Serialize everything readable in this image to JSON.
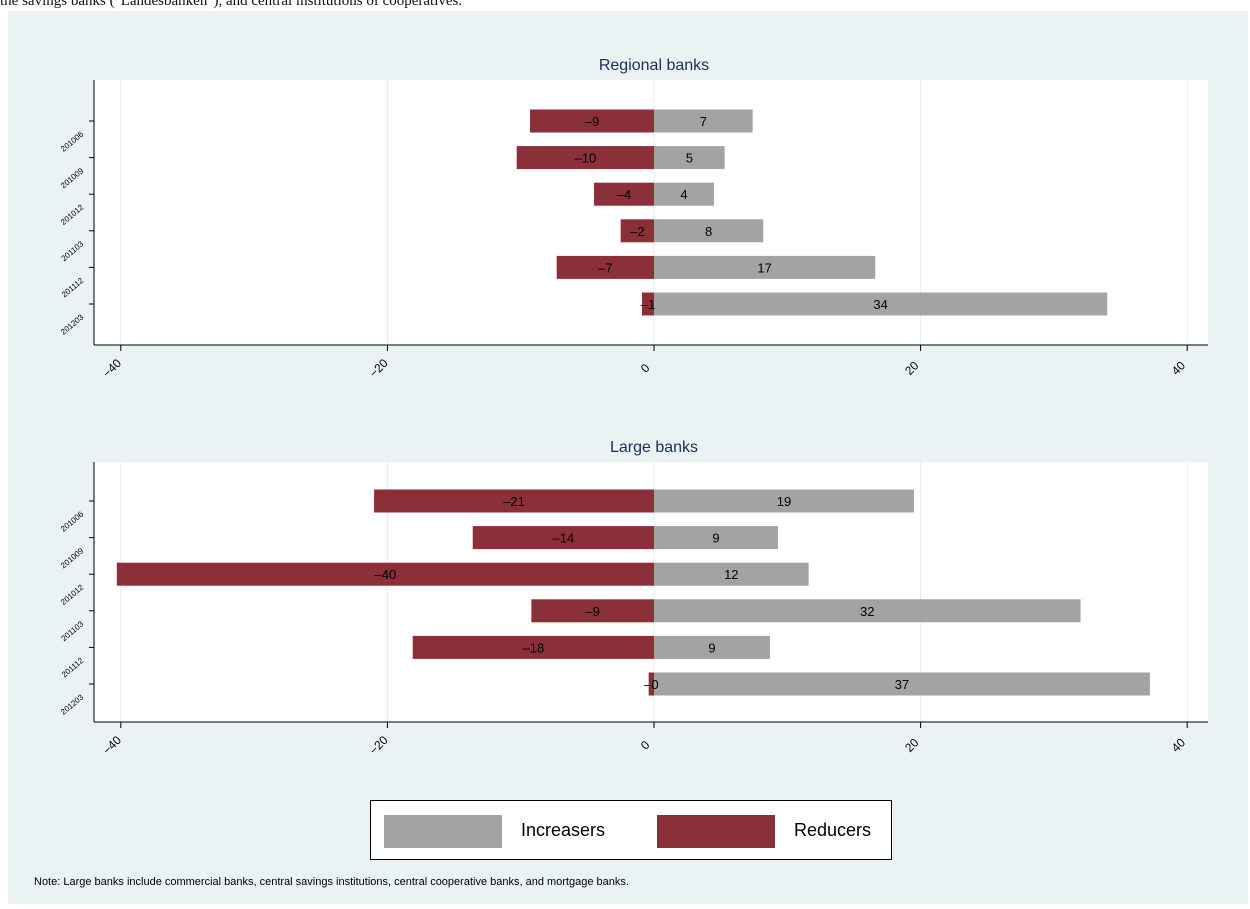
{
  "caption": "the savings banks (\"Landesbanken\"), and central institutions of cooperatives.",
  "colors": {
    "increasers": "#a3a3a3",
    "reducers": "#8b3039",
    "background": "#eaf2f3",
    "plot": "#ffffff",
    "grid": "#e4ecee"
  },
  "legend": {
    "increasers_label": "Increasers",
    "reducers_label": "Reducers"
  },
  "note": "Note: Large banks include commercial banks, central savings institutions, central cooperative banks, and mortgage banks.",
  "chart_data": [
    {
      "type": "bar",
      "orientation": "horizontal",
      "title": "Regional banks",
      "categories": [
        "201006",
        "201009",
        "201012",
        "201103",
        "201112",
        "201203"
      ],
      "xlim": [
        -42,
        42
      ],
      "xticks": [
        "-40",
        "-20",
        "0",
        "20",
        "40"
      ],
      "grid": true,
      "legend": "bottom",
      "series": [
        {
          "name": "Increasers",
          "values": [
            7.4,
            5.3,
            4.5,
            8.2,
            16.6,
            34.0
          ],
          "labels": [
            "7",
            "5",
            "4",
            "8",
            "17",
            "34"
          ]
        },
        {
          "name": "Reducers",
          "values": [
            -9.3,
            -10.3,
            -4.5,
            -2.5,
            -7.3,
            -0.9
          ],
          "labels": [
            "–9",
            "–10",
            "–4",
            "–2",
            "–7",
            "–1"
          ]
        }
      ]
    },
    {
      "type": "bar",
      "orientation": "horizontal",
      "title": "Large banks",
      "categories": [
        "201006",
        "201009",
        "201012",
        "201103",
        "201112",
        "201203"
      ],
      "xlim": [
        -42,
        42
      ],
      "xticks": [
        "-40",
        "-20",
        "0",
        "20",
        "40"
      ],
      "grid": true,
      "legend": "bottom",
      "series": [
        {
          "name": "Increasers",
          "values": [
            19.5,
            9.3,
            11.6,
            32.0,
            8.7,
            37.2
          ],
          "labels": [
            "19",
            "9",
            "12",
            "32",
            "9",
            "37"
          ]
        },
        {
          "name": "Reducers",
          "values": [
            -21.0,
            -13.6,
            -40.3,
            -9.2,
            -18.1,
            -0.4
          ],
          "labels": [
            "–21",
            "–14",
            "–40",
            "–9",
            "–18",
            "–0"
          ]
        }
      ]
    }
  ]
}
